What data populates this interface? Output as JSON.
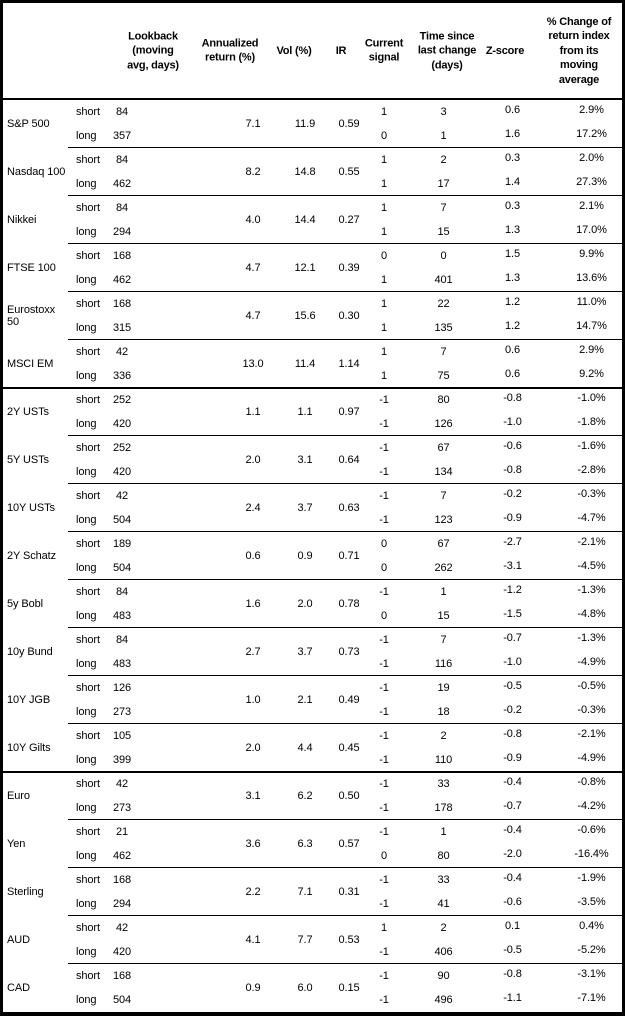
{
  "table": {
    "header": {
      "lookback": "Lookback\n(moving\navg, days)",
      "ann_return": "Annualized\nreturn (%)",
      "vol": "Vol (%)",
      "ir": "IR",
      "signal": "Current\nsignal",
      "days_since": "Time since\nlast change\n(days)",
      "z_score": "Z-score",
      "pct_change": "% Change of\nreturn index\nfrom its\nmoving\naverage"
    },
    "section_breaks_after": [
      "MSCI EM",
      "10Y Gilts"
    ],
    "groups": [
      {
        "name": "S&P 500",
        "ann_return": "7.1",
        "vol": "11.9",
        "ir": "0.59",
        "short": {
          "horizon": "short",
          "lookback": "84",
          "signal": "1",
          "days_since": "3",
          "z_score": "0.6",
          "pct_change": "2.9%"
        },
        "long": {
          "horizon": "long",
          "lookback": "357",
          "signal": "0",
          "days_since": "1",
          "z_score": "1.6",
          "pct_change": "17.2%"
        }
      },
      {
        "name": "Nasdaq 100",
        "ann_return": "8.2",
        "vol": "14.8",
        "ir": "0.55",
        "short": {
          "horizon": "short",
          "lookback": "84",
          "signal": "1",
          "days_since": "2",
          "z_score": "0.3",
          "pct_change": "2.0%"
        },
        "long": {
          "horizon": "long",
          "lookback": "462",
          "signal": "1",
          "days_since": "17",
          "z_score": "1.4",
          "pct_change": "27.3%"
        }
      },
      {
        "name": "Nikkei",
        "ann_return": "4.0",
        "vol": "14.4",
        "ir": "0.27",
        "short": {
          "horizon": "short",
          "lookback": "84",
          "signal": "1",
          "days_since": "7",
          "z_score": "0.3",
          "pct_change": "2.1%"
        },
        "long": {
          "horizon": "long",
          "lookback": "294",
          "signal": "1",
          "days_since": "15",
          "z_score": "1.3",
          "pct_change": "17.0%"
        }
      },
      {
        "name": "FTSE 100",
        "ann_return": "4.7",
        "vol": "12.1",
        "ir": "0.39",
        "short": {
          "horizon": "short",
          "lookback": "168",
          "signal": "0",
          "days_since": "0",
          "z_score": "1.5",
          "pct_change": "9.9%"
        },
        "long": {
          "horizon": "long",
          "lookback": "462",
          "signal": "1",
          "days_since": "401",
          "z_score": "1.3",
          "pct_change": "13.6%"
        }
      },
      {
        "name": "Eurostoxx 50",
        "ann_return": "4.7",
        "vol": "15.6",
        "ir": "0.30",
        "short": {
          "horizon": "short",
          "lookback": "168",
          "signal": "1",
          "days_since": "22",
          "z_score": "1.2",
          "pct_change": "11.0%"
        },
        "long": {
          "horizon": "long",
          "lookback": "315",
          "signal": "1",
          "days_since": "135",
          "z_score": "1.2",
          "pct_change": "14.7%"
        }
      },
      {
        "name": "MSCI EM",
        "ann_return": "13.0",
        "vol": "11.4",
        "ir": "1.14",
        "short": {
          "horizon": "short",
          "lookback": "42",
          "signal": "1",
          "days_since": "7",
          "z_score": "0.6",
          "pct_change": "2.9%"
        },
        "long": {
          "horizon": "long",
          "lookback": "336",
          "signal": "1",
          "days_since": "75",
          "z_score": "0.6",
          "pct_change": "9.2%"
        }
      },
      {
        "name": "2Y USTs",
        "ann_return": "1.1",
        "vol": "1.1",
        "ir": "0.97",
        "short": {
          "horizon": "short",
          "lookback": "252",
          "signal": "-1",
          "days_since": "80",
          "z_score": "-0.8",
          "pct_change": "-1.0%"
        },
        "long": {
          "horizon": "long",
          "lookback": "420",
          "signal": "-1",
          "days_since": "126",
          "z_score": "-1.0",
          "pct_change": "-1.8%"
        }
      },
      {
        "name": "5Y USTs",
        "ann_return": "2.0",
        "vol": "3.1",
        "ir": "0.64",
        "short": {
          "horizon": "short",
          "lookback": "252",
          "signal": "-1",
          "days_since": "67",
          "z_score": "-0.6",
          "pct_change": "-1.6%"
        },
        "long": {
          "horizon": "long",
          "lookback": "420",
          "signal": "-1",
          "days_since": "134",
          "z_score": "-0.8",
          "pct_change": "-2.8%"
        }
      },
      {
        "name": "10Y USTs",
        "ann_return": "2.4",
        "vol": "3.7",
        "ir": "0.63",
        "short": {
          "horizon": "short",
          "lookback": "42",
          "signal": "-1",
          "days_since": "7",
          "z_score": "-0.2",
          "pct_change": "-0.3%"
        },
        "long": {
          "horizon": "long",
          "lookback": "504",
          "signal": "-1",
          "days_since": "123",
          "z_score": "-0.9",
          "pct_change": "-4.7%"
        }
      },
      {
        "name": "2Y Schatz",
        "ann_return": "0.6",
        "vol": "0.9",
        "ir": "0.71",
        "short": {
          "horizon": "short",
          "lookback": "189",
          "signal": "0",
          "days_since": "67",
          "z_score": "-2.7",
          "pct_change": "-2.1%"
        },
        "long": {
          "horizon": "long",
          "lookback": "504",
          "signal": "0",
          "days_since": "262",
          "z_score": "-3.1",
          "pct_change": "-4.5%"
        }
      },
      {
        "name": "5y Bobl",
        "ann_return": "1.6",
        "vol": "2.0",
        "ir": "0.78",
        "short": {
          "horizon": "short",
          "lookback": "84",
          "signal": "-1",
          "days_since": "1",
          "z_score": "-1.2",
          "pct_change": "-1.3%"
        },
        "long": {
          "horizon": "long",
          "lookback": "483",
          "signal": "0",
          "days_since": "15",
          "z_score": "-1.5",
          "pct_change": "-4.8%"
        }
      },
      {
        "name": "10y Bund",
        "ann_return": "2.7",
        "vol": "3.7",
        "ir": "0.73",
        "short": {
          "horizon": "short",
          "lookback": "84",
          "signal": "-1",
          "days_since": "7",
          "z_score": "-0.7",
          "pct_change": "-1.3%"
        },
        "long": {
          "horizon": "long",
          "lookback": "483",
          "signal": "-1",
          "days_since": "116",
          "z_score": "-1.0",
          "pct_change": "-4.9%"
        }
      },
      {
        "name": "10Y JGB",
        "ann_return": "1.0",
        "vol": "2.1",
        "ir": "0.49",
        "short": {
          "horizon": "short",
          "lookback": "126",
          "signal": "-1",
          "days_since": "19",
          "z_score": "-0.5",
          "pct_change": "-0.5%"
        },
        "long": {
          "horizon": "long",
          "lookback": "273",
          "signal": "-1",
          "days_since": "18",
          "z_score": "-0.2",
          "pct_change": "-0.3%"
        }
      },
      {
        "name": "10Y Gilts",
        "ann_return": "2.0",
        "vol": "4.4",
        "ir": "0.45",
        "short": {
          "horizon": "short",
          "lookback": "105",
          "signal": "-1",
          "days_since": "2",
          "z_score": "-0.8",
          "pct_change": "-2.1%"
        },
        "long": {
          "horizon": "long",
          "lookback": "399",
          "signal": "-1",
          "days_since": "110",
          "z_score": "-0.9",
          "pct_change": "-4.9%"
        }
      },
      {
        "name": "Euro",
        "ann_return": "3.1",
        "vol": "6.2",
        "ir": "0.50",
        "short": {
          "horizon": "short",
          "lookback": "42",
          "signal": "-1",
          "days_since": "33",
          "z_score": "-0.4",
          "pct_change": "-0.8%"
        },
        "long": {
          "horizon": "long",
          "lookback": "273",
          "signal": "-1",
          "days_since": "178",
          "z_score": "-0.7",
          "pct_change": "-4.2%"
        }
      },
      {
        "name": "Yen",
        "ann_return": "3.6",
        "vol": "6.3",
        "ir": "0.57",
        "short": {
          "horizon": "short",
          "lookback": "21",
          "signal": "-1",
          "days_since": "1",
          "z_score": "-0.4",
          "pct_change": "-0.6%"
        },
        "long": {
          "horizon": "long",
          "lookback": "462",
          "signal": "0",
          "days_since": "80",
          "z_score": "-2.0",
          "pct_change": "-16.4%"
        }
      },
      {
        "name": "Sterling",
        "ann_return": "2.2",
        "vol": "7.1",
        "ir": "0.31",
        "short": {
          "horizon": "short",
          "lookback": "168",
          "signal": "-1",
          "days_since": "33",
          "z_score": "-0.4",
          "pct_change": "-1.9%"
        },
        "long": {
          "horizon": "long",
          "lookback": "294",
          "signal": "-1",
          "days_since": "41",
          "z_score": "-0.6",
          "pct_change": "-3.5%"
        }
      },
      {
        "name": "AUD",
        "ann_return": "4.1",
        "vol": "7.7",
        "ir": "0.53",
        "short": {
          "horizon": "short",
          "lookback": "42",
          "signal": "1",
          "days_since": "2",
          "z_score": "0.1",
          "pct_change": "0.4%"
        },
        "long": {
          "horizon": "long",
          "lookback": "420",
          "signal": "-1",
          "days_since": "406",
          "z_score": "-0.5",
          "pct_change": "-5.2%"
        }
      },
      {
        "name": "CAD",
        "ann_return": "0.9",
        "vol": "6.0",
        "ir": "0.15",
        "short": {
          "horizon": "short",
          "lookback": "168",
          "signal": "-1",
          "days_since": "90",
          "z_score": "-0.8",
          "pct_change": "-3.1%"
        },
        "long": {
          "horizon": "long",
          "lookback": "504",
          "signal": "-1",
          "days_since": "496",
          "z_score": "-1.1",
          "pct_change": "-7.1%"
        }
      }
    ]
  }
}
